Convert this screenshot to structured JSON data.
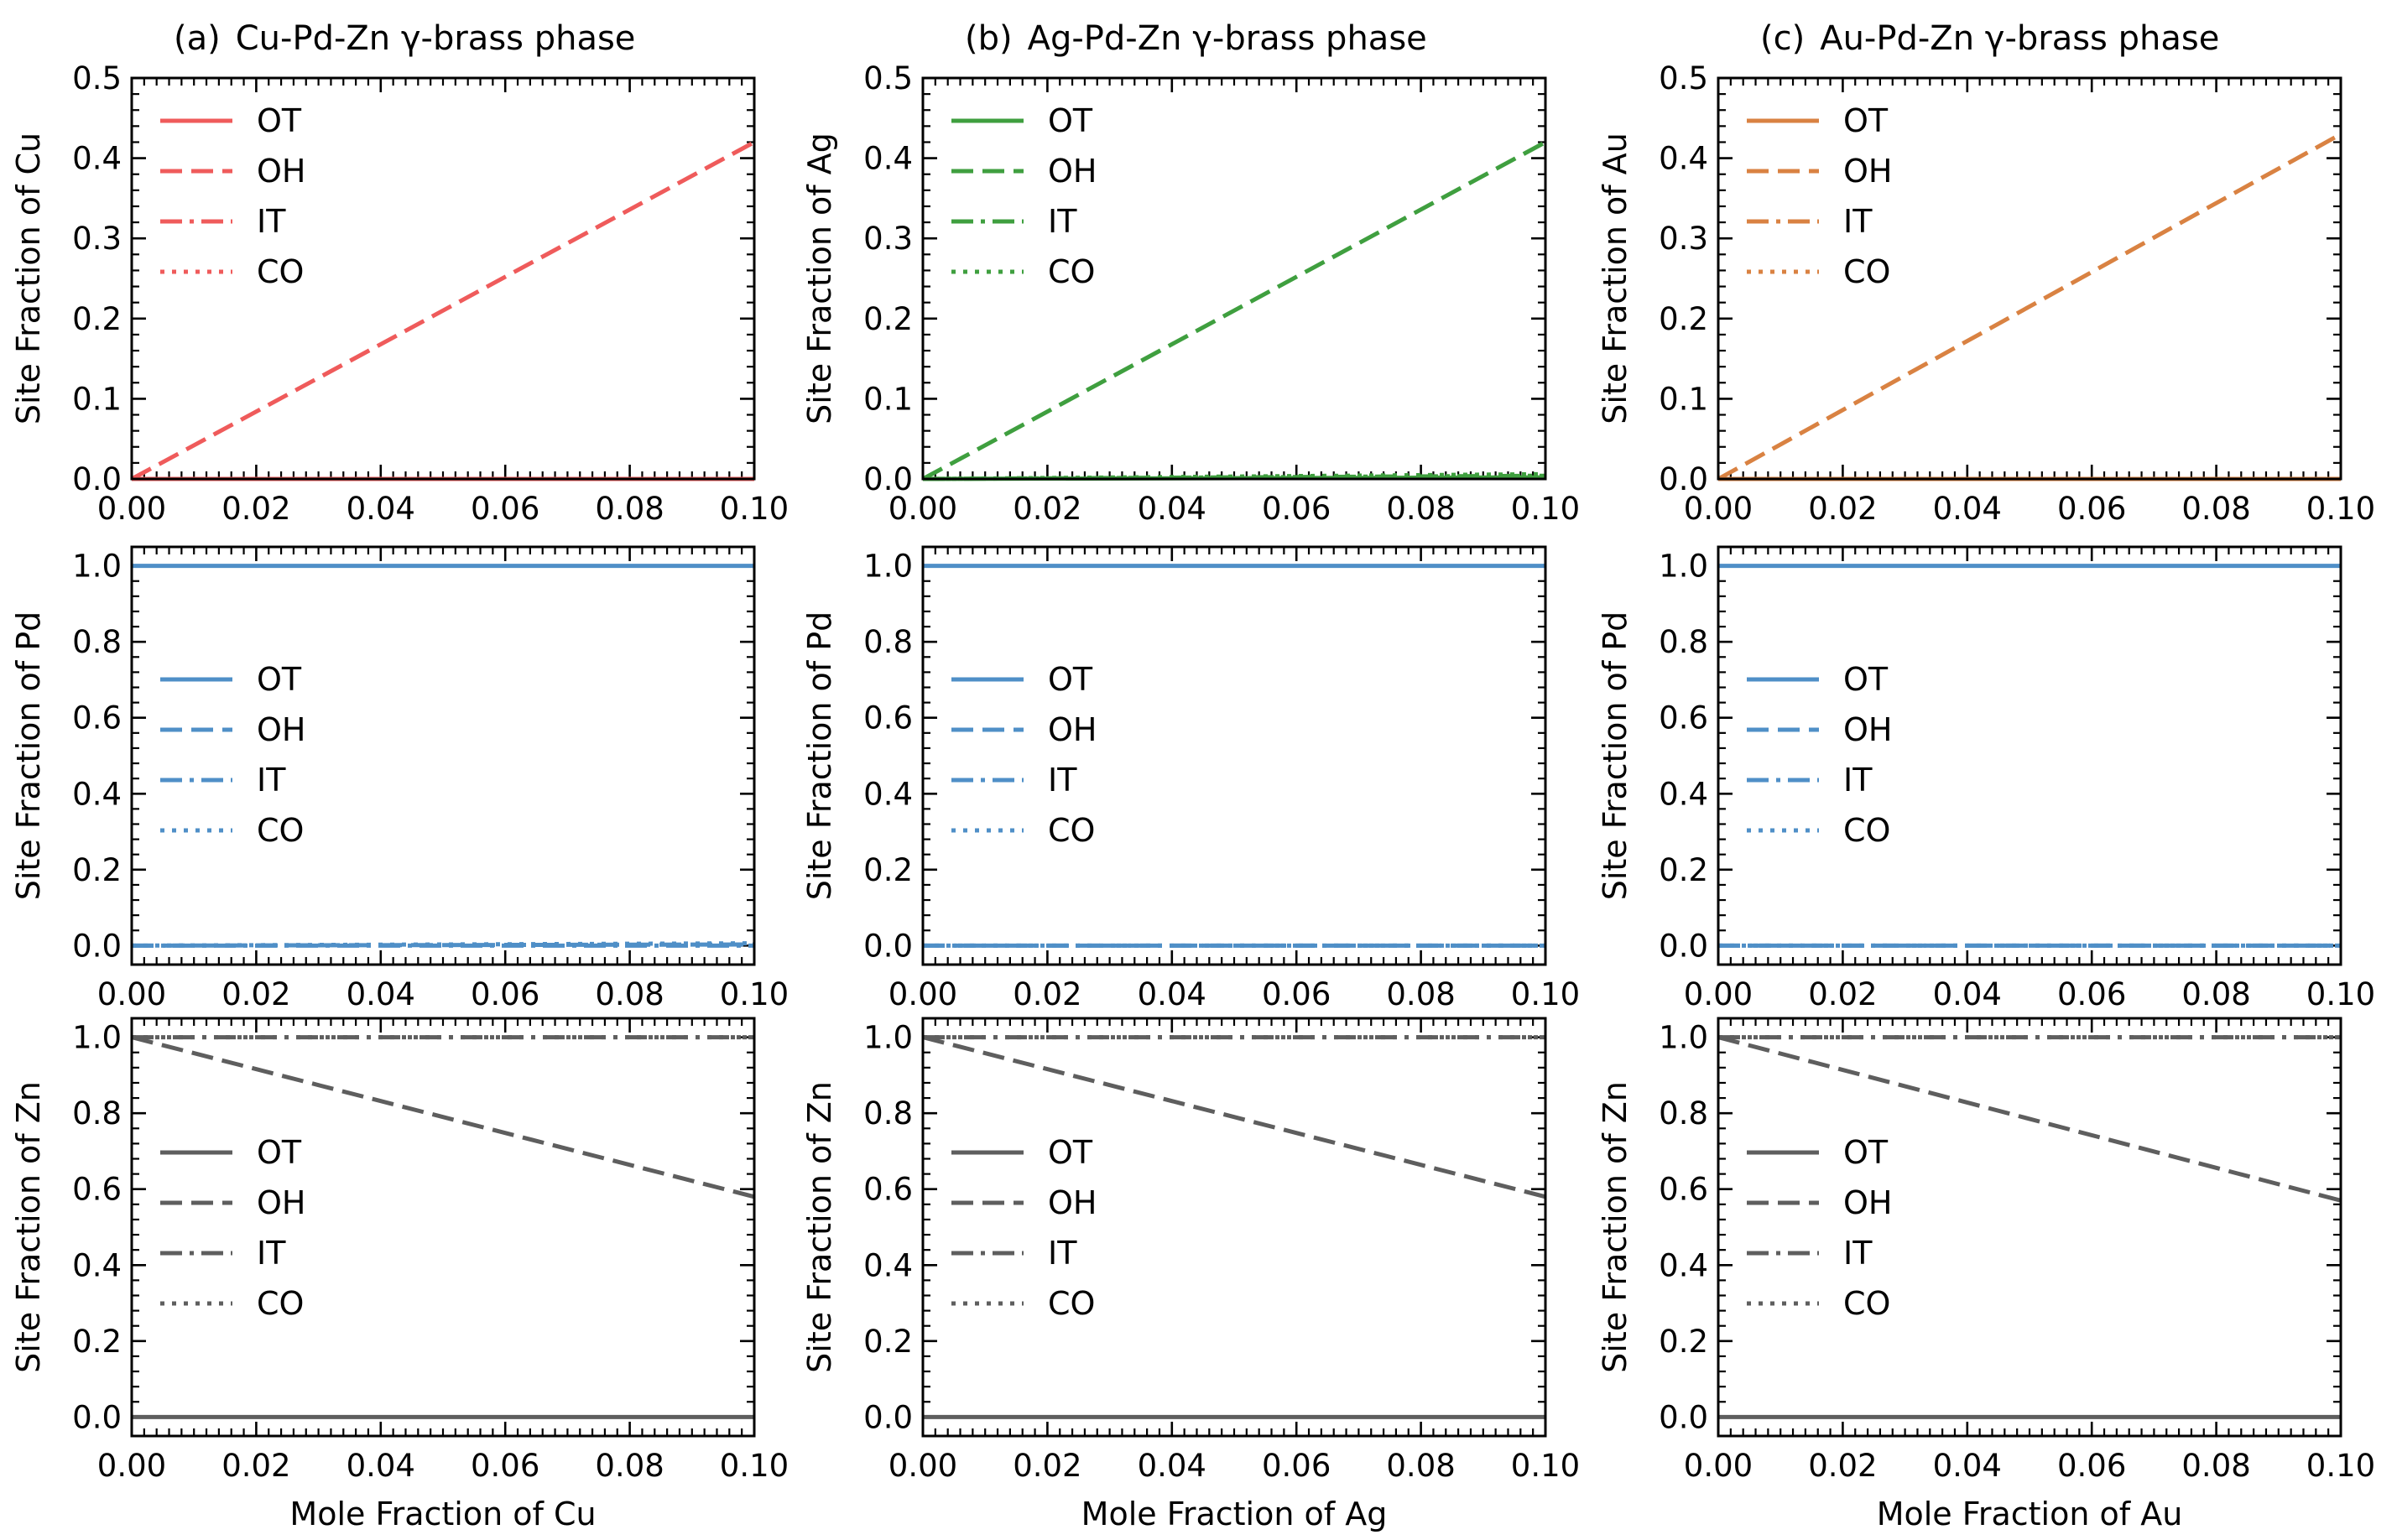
{
  "figure": {
    "columns": [
      {
        "panel": "(a)",
        "title": "Cu-Pd-Zn γ-brass phase",
        "element": "Cu",
        "xlabel": "Mole Fraction of Cu",
        "color": "#ef5b5b"
      },
      {
        "panel": "(b)",
        "title": "Ag-Pd-Zn γ-brass phase",
        "element": "Ag",
        "xlabel": "Mole Fraction of Ag",
        "color": "#3f9f3f"
      },
      {
        "panel": "(c)",
        "title": "Au-Pd-Zn γ-brass phase",
        "element": "Au",
        "xlabel": "Mole Fraction of Au",
        "color": "#d98242"
      }
    ],
    "rows": [
      {
        "label": "row-first-element"
      },
      {
        "label": "row-pd",
        "ylabel": "Site Fraction of Pd",
        "color": "#4f8fc7"
      },
      {
        "label": "row-zn",
        "ylabel": "Site Fraction of Zn",
        "color": "#5e5e5e"
      }
    ]
  },
  "chart_data": [
    {
      "type": "line",
      "panel": "(a)",
      "title": "Cu-Pd-Zn γ-brass phase",
      "xlabel": "",
      "ylabel": "Site Fraction of Cu",
      "xlim": [
        0,
        0.1
      ],
      "ylim": [
        0,
        0.5
      ],
      "yticks": [
        0.0,
        0.1,
        0.2,
        0.3,
        0.4,
        0.5
      ],
      "xticks": [
        0.0,
        0.02,
        0.04,
        0.06,
        0.08,
        0.1
      ],
      "legend": "upper-left",
      "series": [
        {
          "name": "OT",
          "style": "solid",
          "x": [
            0,
            0.1
          ],
          "y": [
            0,
            0
          ]
        },
        {
          "name": "OH",
          "style": "dashed",
          "x": [
            0,
            0.1
          ],
          "y": [
            0,
            0.42
          ]
        },
        {
          "name": "IT",
          "style": "dashdot",
          "x": [
            0,
            0.1
          ],
          "y": [
            0,
            0
          ]
        },
        {
          "name": "CO",
          "style": "dotted",
          "x": [
            0,
            0.1
          ],
          "y": [
            0,
            0
          ]
        }
      ]
    },
    {
      "type": "line",
      "panel": "(b)",
      "title": "Ag-Pd-Zn γ-brass phase",
      "xlabel": "",
      "ylabel": "Site Fraction of Ag",
      "xlim": [
        0,
        0.1
      ],
      "ylim": [
        0,
        0.5
      ],
      "yticks": [
        0.0,
        0.1,
        0.2,
        0.3,
        0.4,
        0.5
      ],
      "xticks": [
        0.0,
        0.02,
        0.04,
        0.06,
        0.08,
        0.1
      ],
      "legend": "upper-left",
      "series": [
        {
          "name": "OT",
          "style": "solid",
          "x": [
            0,
            0.1
          ],
          "y": [
            0,
            0.002
          ]
        },
        {
          "name": "OH",
          "style": "dashed",
          "x": [
            0,
            0.1
          ],
          "y": [
            0,
            0.42
          ]
        },
        {
          "name": "IT",
          "style": "dashdot",
          "x": [
            0,
            0.1
          ],
          "y": [
            0,
            0.004
          ]
        },
        {
          "name": "CO",
          "style": "dotted",
          "x": [
            0,
            0.1
          ],
          "y": [
            0,
            0.006
          ]
        }
      ]
    },
    {
      "type": "line",
      "panel": "(c)",
      "title": "Au-Pd-Zn γ-brass phase",
      "xlabel": "",
      "ylabel": "Site Fraction of Au",
      "xlim": [
        0,
        0.1
      ],
      "ylim": [
        0,
        0.5
      ],
      "yticks": [
        0.0,
        0.1,
        0.2,
        0.3,
        0.4,
        0.5
      ],
      "xticks": [
        0.0,
        0.02,
        0.04,
        0.06,
        0.08,
        0.1
      ],
      "legend": "upper-left",
      "series": [
        {
          "name": "OT",
          "style": "solid",
          "x": [
            0,
            0.1
          ],
          "y": [
            0,
            0
          ]
        },
        {
          "name": "OH",
          "style": "dashed",
          "x": [
            0,
            0.1
          ],
          "y": [
            0,
            0.43
          ]
        },
        {
          "name": "IT",
          "style": "dashdot",
          "x": [
            0,
            0.1
          ],
          "y": [
            0,
            0
          ]
        },
        {
          "name": "CO",
          "style": "dotted",
          "x": [
            0,
            0.1
          ],
          "y": [
            0,
            0
          ]
        }
      ]
    },
    {
      "type": "line",
      "panel": "(a)",
      "xlabel": "",
      "ylabel": "Site Fraction of Pd",
      "xlim": [
        0,
        0.1
      ],
      "ylim": [
        -0.05,
        1.05
      ],
      "yticks": [
        0.0,
        0.2,
        0.4,
        0.6,
        0.8,
        1.0
      ],
      "xticks": [
        0.0,
        0.02,
        0.04,
        0.06,
        0.08,
        0.1
      ],
      "legend": "center-left",
      "series": [
        {
          "name": "OT",
          "style": "solid",
          "x": [
            0,
            0.1
          ],
          "y": [
            1,
            1
          ]
        },
        {
          "name": "OH",
          "style": "dashed",
          "x": [
            0,
            0.1
          ],
          "y": [
            0,
            0.003
          ]
        },
        {
          "name": "IT",
          "style": "dashdot",
          "x": [
            0,
            0.1
          ],
          "y": [
            0,
            0
          ]
        },
        {
          "name": "CO",
          "style": "dotted",
          "x": [
            0,
            0.1
          ],
          "y": [
            0,
            0.006
          ]
        }
      ]
    },
    {
      "type": "line",
      "panel": "(b)",
      "xlabel": "",
      "ylabel": "Site Fraction of Pd",
      "xlim": [
        0,
        0.1
      ],
      "ylim": [
        -0.05,
        1.05
      ],
      "yticks": [
        0.0,
        0.2,
        0.4,
        0.6,
        0.8,
        1.0
      ],
      "xticks": [
        0.0,
        0.02,
        0.04,
        0.06,
        0.08,
        0.1
      ],
      "legend": "center-left",
      "series": [
        {
          "name": "OT",
          "style": "solid",
          "x": [
            0,
            0.1
          ],
          "y": [
            1,
            1
          ]
        },
        {
          "name": "OH",
          "style": "dashed",
          "x": [
            0,
            0.1
          ],
          "y": [
            0,
            0
          ]
        },
        {
          "name": "IT",
          "style": "dashdot",
          "x": [
            0,
            0.1
          ],
          "y": [
            0,
            0
          ]
        },
        {
          "name": "CO",
          "style": "dotted",
          "x": [
            0,
            0.1
          ],
          "y": [
            0,
            0
          ]
        }
      ]
    },
    {
      "type": "line",
      "panel": "(c)",
      "xlabel": "",
      "ylabel": "Site Fraction of Pd",
      "xlim": [
        0,
        0.1
      ],
      "ylim": [
        -0.05,
        1.05
      ],
      "yticks": [
        0.0,
        0.2,
        0.4,
        0.6,
        0.8,
        1.0
      ],
      "xticks": [
        0.0,
        0.02,
        0.04,
        0.06,
        0.08,
        0.1
      ],
      "legend": "center-left",
      "series": [
        {
          "name": "OT",
          "style": "solid",
          "x": [
            0,
            0.1
          ],
          "y": [
            1,
            1
          ]
        },
        {
          "name": "OH",
          "style": "dashed",
          "x": [
            0,
            0.1
          ],
          "y": [
            0,
            0
          ]
        },
        {
          "name": "IT",
          "style": "dashdot",
          "x": [
            0,
            0.1
          ],
          "y": [
            0,
            0
          ]
        },
        {
          "name": "CO",
          "style": "dotted",
          "x": [
            0,
            0.1
          ],
          "y": [
            0,
            0
          ]
        }
      ]
    },
    {
      "type": "line",
      "panel": "(a)",
      "xlabel": "Mole Fraction of Cu",
      "ylabel": "Site Fraction of Zn",
      "xlim": [
        0,
        0.1
      ],
      "ylim": [
        -0.05,
        1.05
      ],
      "yticks": [
        0.0,
        0.2,
        0.4,
        0.6,
        0.8,
        1.0
      ],
      "xticks": [
        0.0,
        0.02,
        0.04,
        0.06,
        0.08,
        0.1
      ],
      "legend": "center-left",
      "series": [
        {
          "name": "OT",
          "style": "solid",
          "x": [
            0,
            0.1
          ],
          "y": [
            0,
            0
          ]
        },
        {
          "name": "OH",
          "style": "dashed",
          "x": [
            0,
            0.1
          ],
          "y": [
            1,
            0.58
          ]
        },
        {
          "name": "IT",
          "style": "dashdot",
          "x": [
            0,
            0.1
          ],
          "y": [
            1,
            1
          ]
        },
        {
          "name": "CO",
          "style": "dotted",
          "x": [
            0,
            0.1
          ],
          "y": [
            1,
            1
          ]
        }
      ]
    },
    {
      "type": "line",
      "panel": "(b)",
      "xlabel": "Mole Fraction of Ag",
      "ylabel": "Site Fraction of Zn",
      "xlim": [
        0,
        0.1
      ],
      "ylim": [
        -0.05,
        1.05
      ],
      "yticks": [
        0.0,
        0.2,
        0.4,
        0.6,
        0.8,
        1.0
      ],
      "xticks": [
        0.0,
        0.02,
        0.04,
        0.06,
        0.08,
        0.1
      ],
      "legend": "center-left",
      "series": [
        {
          "name": "OT",
          "style": "solid",
          "x": [
            0,
            0.1
          ],
          "y": [
            0,
            0
          ]
        },
        {
          "name": "OH",
          "style": "dashed",
          "x": [
            0,
            0.1
          ],
          "y": [
            1,
            0.58
          ]
        },
        {
          "name": "IT",
          "style": "dashdot",
          "x": [
            0,
            0.1
          ],
          "y": [
            1,
            1
          ]
        },
        {
          "name": "CO",
          "style": "dotted",
          "x": [
            0,
            0.1
          ],
          "y": [
            1,
            1
          ]
        }
      ]
    },
    {
      "type": "line",
      "panel": "(c)",
      "xlabel": "Mole Fraction of Au",
      "ylabel": "Site Fraction of Zn",
      "xlim": [
        0,
        0.1
      ],
      "ylim": [
        -0.05,
        1.05
      ],
      "yticks": [
        0.0,
        0.2,
        0.4,
        0.6,
        0.8,
        1.0
      ],
      "xticks": [
        0.0,
        0.02,
        0.04,
        0.06,
        0.08,
        0.1
      ],
      "legend": "center-left",
      "series": [
        {
          "name": "OT",
          "style": "solid",
          "x": [
            0,
            0.1
          ],
          "y": [
            0,
            0
          ]
        },
        {
          "name": "OH",
          "style": "dashed",
          "x": [
            0,
            0.1
          ],
          "y": [
            1,
            0.57
          ]
        },
        {
          "name": "IT",
          "style": "dashdot",
          "x": [
            0,
            0.1
          ],
          "y": [
            1,
            1
          ]
        },
        {
          "name": "CO",
          "style": "dotted",
          "x": [
            0,
            0.1
          ],
          "y": [
            1,
            1
          ]
        }
      ]
    }
  ]
}
